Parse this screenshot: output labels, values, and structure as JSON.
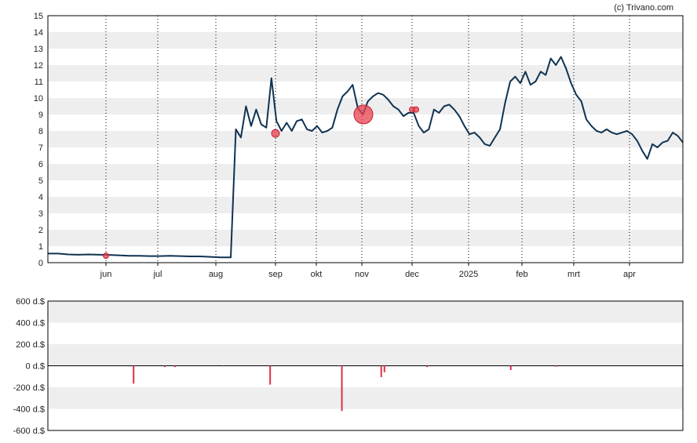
{
  "credit": "(c) Trivano.com",
  "colors": {
    "price_line": "#0f3352",
    "band": "#eeeeee",
    "event_marker": "#e8404f",
    "volume_bar": "#e03048",
    "zero_line": "#000000",
    "vgrid": "#000000"
  },
  "chart_data": [
    {
      "type": "line",
      "grid": true,
      "x_labels": [
        "jun",
        "jul",
        "aug",
        "sep",
        "okt",
        "nov",
        "dec",
        "2025",
        "feb",
        "mrt",
        "apr"
      ],
      "y_ticks": [
        0,
        1,
        2,
        3,
        4,
        5,
        6,
        7,
        8,
        9,
        10,
        11,
        12,
        13,
        14,
        15
      ],
      "ylim": [
        0,
        15
      ],
      "series": [
        {
          "values": [
            0.55,
            0.55,
            0.5,
            0.48,
            0.5,
            0.48,
            0.47,
            0.45,
            0.42,
            0.42,
            0.4,
            0.4,
            0.42,
            0.4,
            0.38,
            0.38,
            0.35,
            0.32,
            0.32,
            8.1,
            7.6,
            9.5,
            8.3,
            9.3,
            8.4,
            8.2,
            11.2,
            8.6,
            8.0,
            8.5,
            8.0,
            8.6,
            8.7,
            8.1,
            8.0,
            8.3,
            7.9,
            8.0,
            8.2,
            9.3,
            10.1,
            10.4,
            10.8,
            9.4,
            9.0,
            9.8,
            10.1,
            10.3,
            10.2,
            9.9,
            9.5,
            9.3,
            8.9,
            9.1,
            9.1,
            8.3,
            7.9,
            8.1,
            9.3,
            9.1,
            9.5,
            9.6,
            9.3,
            8.9,
            8.3,
            7.8,
            7.9,
            7.6,
            7.2,
            7.1,
            7.6,
            8.1,
            9.7,
            11.0,
            11.3,
            10.9,
            11.6,
            10.8,
            11.0,
            11.6,
            11.4,
            12.4,
            12.0,
            12.5,
            11.8,
            10.9,
            10.2,
            9.8,
            8.7,
            8.3,
            8.0,
            7.9,
            8.1,
            7.9,
            7.8,
            7.9,
            8.0,
            7.8,
            7.4,
            6.8,
            6.3,
            7.2,
            7.0,
            7.3,
            7.4,
            7.9,
            7.7,
            7.3
          ],
          "x_fractions": [
            0.0,
            0.02,
            0.04,
            0.06,
            0.08,
            0.1,
            0.12,
            0.14,
            0.16,
            0.18,
            0.2,
            0.22,
            0.24,
            0.26,
            0.28,
            0.3,
            0.32,
            0.34,
            0.36,
            0.37,
            0.38,
            0.39,
            0.4,
            0.41,
            0.42,
            0.43,
            0.44,
            0.45,
            0.46,
            0.47,
            0.48,
            0.49,
            0.5,
            0.51,
            0.52,
            0.53,
            0.54,
            0.55,
            0.56,
            0.57,
            0.58,
            0.59,
            0.6,
            0.61,
            0.62,
            0.63,
            0.64,
            0.65,
            0.66,
            0.67,
            0.68,
            0.69,
            0.7,
            0.71,
            0.72,
            0.73,
            0.74,
            0.75,
            0.76,
            0.77,
            0.78,
            0.79,
            0.8,
            0.81,
            0.82,
            0.83,
            0.84,
            0.85,
            0.86,
            0.87,
            0.88,
            0.89,
            0.9,
            0.91,
            0.92,
            0.93,
            0.94,
            0.95,
            0.96,
            0.97,
            0.98,
            0.99,
            1.0,
            1.01,
            1.02,
            1.03,
            1.04,
            1.05,
            1.06,
            1.07,
            1.08,
            1.09,
            1.1,
            1.11,
            1.12,
            1.13,
            1.14,
            1.15,
            1.16,
            1.17,
            1.18,
            1.19,
            1.2,
            1.21,
            1.22,
            1.23,
            1.24,
            1.25
          ]
        }
      ],
      "events": [
        {
          "month": "jun",
          "value": 0.42,
          "size": "small"
        },
        {
          "month": "sep",
          "value": 7.85,
          "size": "medium"
        },
        {
          "month": "nov",
          "value": 9.0,
          "size": "large"
        },
        {
          "month": "dec",
          "value": 9.3,
          "size": "small"
        },
        {
          "month": "dec",
          "value": 9.3,
          "size": "small"
        }
      ]
    },
    {
      "type": "bar",
      "grid": true,
      "y_ticks": [
        "600 d.$",
        "400 d.$",
        "200 d.$",
        "0 d.$",
        "-200 d.$",
        "-400 d.$",
        "-600 d.$"
      ],
      "ylim": [
        -600,
        600
      ],
      "bars": [
        {
          "pos": 0.135,
          "value": -165
        },
        {
          "pos": 0.184,
          "value": -12
        },
        {
          "pos": 0.2,
          "value": -12
        },
        {
          "pos": 0.276,
          "value": -5
        },
        {
          "pos": 0.35,
          "value": -175
        },
        {
          "pos": 0.458,
          "value": -5
        },
        {
          "pos": 0.463,
          "value": -420
        },
        {
          "pos": 0.525,
          "value": -105
        },
        {
          "pos": 0.53,
          "value": -60
        },
        {
          "pos": 0.597,
          "value": -12
        },
        {
          "pos": 0.729,
          "value": -40
        },
        {
          "pos": 0.8,
          "value": -8
        }
      ]
    }
  ]
}
